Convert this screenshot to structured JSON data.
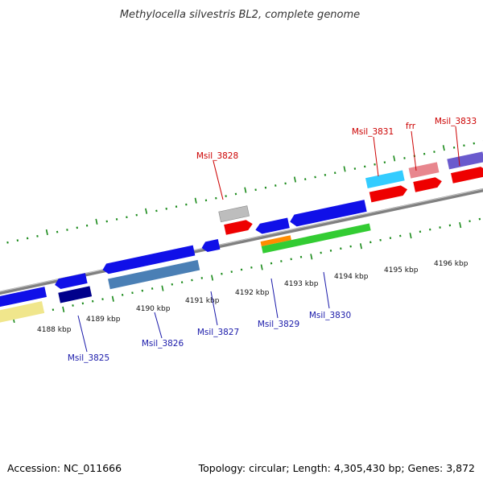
{
  "title": "Methylocella silvestris BL2, complete genome",
  "footer": {
    "accession": "Accession: NC_011666",
    "summary": "Topology: circular; Length: 4,305,430 bp; Genes: 3,872"
  },
  "colors": {
    "backbone": "#7f7f7f",
    "tick": "#1a8a1a",
    "top_label": "#cc0000",
    "bottom_label": "#1a1aaa"
  },
  "kbp_labels": [
    "4188 kbp",
    "4189 kbp",
    "4190 kbp",
    "4191 kbp",
    "4192 kbp",
    "4193 kbp",
    "4194 kbp",
    "4195 kbp",
    "4196 kbp"
  ],
  "top_labels": [
    "Msil_3828",
    "Msil_3831",
    "frr",
    "Msil_3833"
  ],
  "bottom_labels": [
    "Msil_3825",
    "Msil_3826",
    "Msil_3827",
    "Msil_3829",
    "Msil_3830"
  ]
}
